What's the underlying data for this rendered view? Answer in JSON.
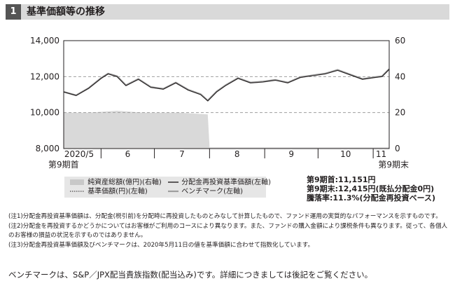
{
  "header": {
    "num": "1",
    "title": "基準価額等の推移"
  },
  "chart_data": {
    "type": "line",
    "x_tick_labels": [
      "2020/5",
      "6",
      "7",
      "8",
      "9",
      "10",
      "11"
    ],
    "x_start_label": "第9期首",
    "x_end_label": "第9期末",
    "y_left": {
      "ticks": [
        "14,000",
        "12,000",
        "10,000",
        "8,000"
      ],
      "range": [
        8000,
        14000
      ]
    },
    "y_right": {
      "ticks": [
        "60",
        "40",
        "20",
        "0"
      ],
      "range": [
        0,
        60
      ]
    },
    "months": [
      "2020-05-11",
      "2020-06-01",
      "2020-07-01",
      "2020-08-01",
      "2020-09-01",
      "2020-10-01",
      "2020-11-01",
      "2020-11-10"
    ],
    "series": [
      {
        "name": "分配金再投資基準価額(左軸)",
        "axis": "left",
        "x": [
          "2020-05-11",
          "2020-05-18",
          "2020-05-25",
          "2020-06-01",
          "2020-06-05",
          "2020-06-10",
          "2020-06-15",
          "2020-06-22",
          "2020-06-29",
          "2020-07-06",
          "2020-07-13",
          "2020-07-20",
          "2020-07-27",
          "2020-07-31",
          "2020-08-05",
          "2020-08-10",
          "2020-08-17",
          "2020-08-24",
          "2020-08-31",
          "2020-09-07",
          "2020-09-14",
          "2020-09-21",
          "2020-09-28",
          "2020-10-05",
          "2020-10-12",
          "2020-10-19",
          "2020-10-26",
          "2020-11-02",
          "2020-11-06",
          "2020-11-10"
        ],
        "y": [
          11151,
          10950,
          11350,
          11900,
          12150,
          12000,
          11500,
          11850,
          11400,
          11300,
          11650,
          11250,
          11000,
          10650,
          11150,
          11500,
          11900,
          11650,
          11700,
          11800,
          11650,
          11950,
          12050,
          12150,
          12350,
          12100,
          11850,
          11950,
          12000,
          12415
        ]
      },
      {
        "name": "ベンチマーク(左軸)",
        "axis": "left",
        "x": [
          "2020-05-11",
          "2020-05-18",
          "2020-05-25",
          "2020-06-01",
          "2020-06-05",
          "2020-06-10",
          "2020-06-15",
          "2020-06-22",
          "2020-06-29",
          "2020-07-06",
          "2020-07-13",
          "2020-07-20",
          "2020-07-27",
          "2020-07-31",
          "2020-08-05",
          "2020-08-10",
          "2020-08-17",
          "2020-08-24",
          "2020-08-31",
          "2020-09-07",
          "2020-09-14",
          "2020-09-21",
          "2020-09-28",
          "2020-10-05",
          "2020-10-12",
          "2020-10-19",
          "2020-10-26",
          "2020-11-02",
          "2020-11-06",
          "2020-11-10"
        ],
        "y": [
          11151,
          10960,
          11360,
          11920,
          12170,
          12020,
          11520,
          11870,
          11420,
          11320,
          11670,
          11270,
          11020,
          10670,
          11170,
          11520,
          11920,
          11670,
          11720,
          11820,
          11670,
          11970,
          12070,
          12170,
          12370,
          12120,
          11870,
          11970,
          12020,
          12420
        ]
      },
      {
        "name": "純資産総額(億円)(右軸)",
        "axis": "right",
        "type": "area",
        "x": [
          "2020-05-11",
          "2020-05-25",
          "2020-06-10",
          "2020-06-25",
          "2020-07-15",
          "2020-07-31",
          "2020-08-01",
          "2020-08-15",
          "2020-09-15",
          "2020-10-15",
          "2020-11-10"
        ],
        "y": [
          20,
          20,
          21,
          20,
          20,
          19,
          0.7,
          0.7,
          0.7,
          0.7,
          0.7
        ]
      }
    ],
    "legend": [
      "純資産総額(億円)(右軸)",
      "分配金再投資基準価額(左軸)",
      "基準価額(円)(左軸)",
      "ベンチマーク(左軸)"
    ]
  },
  "stats": [
    "第9期首:11,151円",
    "第9期末:12,415円(既払分配金0円)",
    "騰落率:11.3%(分配金再投資ベース)"
  ],
  "notes": [
    "(注1)分配金再投資基準価額は、分配金(税引前)を分配時に再投資したものとみなして計算したもので、ファンド運用の実質的なパフォーマンスを示すものです。",
    "(注2)分配金を再投資するかどうかについてはお客様がご利用のコースにより異なります。また、ファンドの購入金額により課税条件も異なります。従って、各個人のお客様の損益の状況を示すものではありません。",
    "(注3)分配金再投資基準価額及びベンチマークは、2020年5月11日の値を基準価額に合わせて指数化しています。"
  ],
  "footer": "ベンチマークは、S&P／JPX配当貴族指数(配当込み)です。詳細につきましては後記をご覧ください。",
  "colors": {
    "area": "#d9d9d9",
    "line": "#231f20",
    "benchmark": "#9e9e9e",
    "grid": "#9e9e9e"
  }
}
